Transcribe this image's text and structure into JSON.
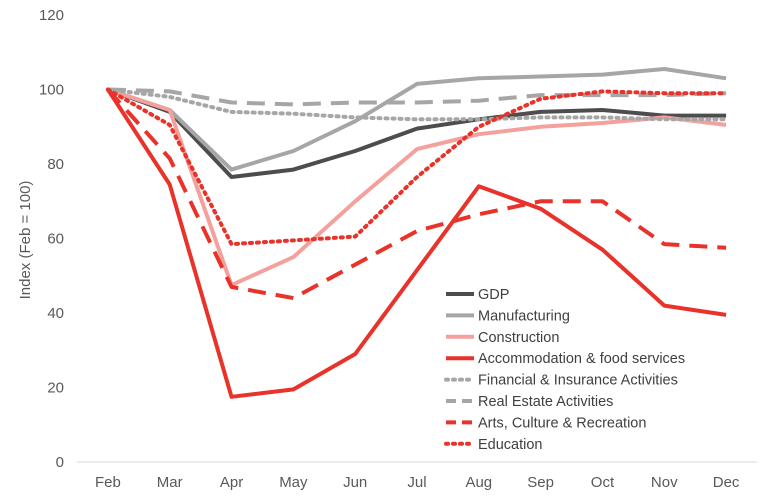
{
  "chart_data": {
    "type": "line",
    "title": "",
    "xlabel": "",
    "ylabel": "Index (Feb = 100)",
    "ylim": [
      0,
      120
    ],
    "yticks": [
      "0",
      "20",
      "40",
      "60",
      "80",
      "100",
      "120"
    ],
    "grid": false,
    "legend_position": "lower-right inside plot",
    "categories": [
      "Feb",
      "Mar",
      "Apr",
      "May",
      "Jun",
      "Jul",
      "Aug",
      "Sep",
      "Oct",
      "Nov",
      "Dec"
    ],
    "series": [
      {
        "name": "GDP",
        "color": "#4d4d4d",
        "dash": "solid",
        "values": [
          100,
          94,
          76.5,
          78.5,
          83.5,
          89.5,
          92,
          94,
          94.5,
          93,
          93
        ]
      },
      {
        "name": "Manufacturing",
        "color": "#a6a6a6",
        "dash": "solid",
        "values": [
          100,
          94.5,
          78.5,
          83.5,
          91.5,
          101.5,
          103,
          103.5,
          104,
          105.5,
          103
        ]
      },
      {
        "name": "Construction",
        "color": "#f4a09c",
        "dash": "solid",
        "values": [
          100,
          94.5,
          47.5,
          55,
          70,
          84,
          88,
          90,
          91,
          92.5,
          90.5
        ]
      },
      {
        "name": "Accommodation & food services",
        "color": "#e8322a",
        "dash": "solid",
        "values": [
          100,
          74.5,
          17.5,
          19.5,
          29,
          51.5,
          74,
          68,
          57,
          42,
          39.5
        ]
      },
      {
        "name": "Financial & Insurance Activities",
        "color": "#a6a6a6",
        "dash": "dot",
        "values": [
          100,
          98,
          94,
          93.5,
          92.5,
          92,
          92,
          92.5,
          92.5,
          92,
          92
        ]
      },
      {
        "name": "Real Estate Activities",
        "color": "#a6a6a6",
        "dash": "dash",
        "values": [
          100,
          99.5,
          96.5,
          96,
          96.5,
          96.5,
          97,
          98.5,
          98.5,
          98.5,
          99
        ]
      },
      {
        "name": "Arts, Culture & Recreation",
        "color": "#e8322a",
        "dash": "dash",
        "values": [
          100,
          81.5,
          47,
          44,
          53,
          62,
          66.5,
          70,
          70,
          58.5,
          57.5
        ]
      },
      {
        "name": "Education",
        "color": "#e8322a",
        "dash": "dot",
        "values": [
          100,
          90.5,
          58.5,
          59.5,
          60.5,
          76.5,
          90,
          97.5,
          99.5,
          99,
          99
        ]
      }
    ]
  }
}
